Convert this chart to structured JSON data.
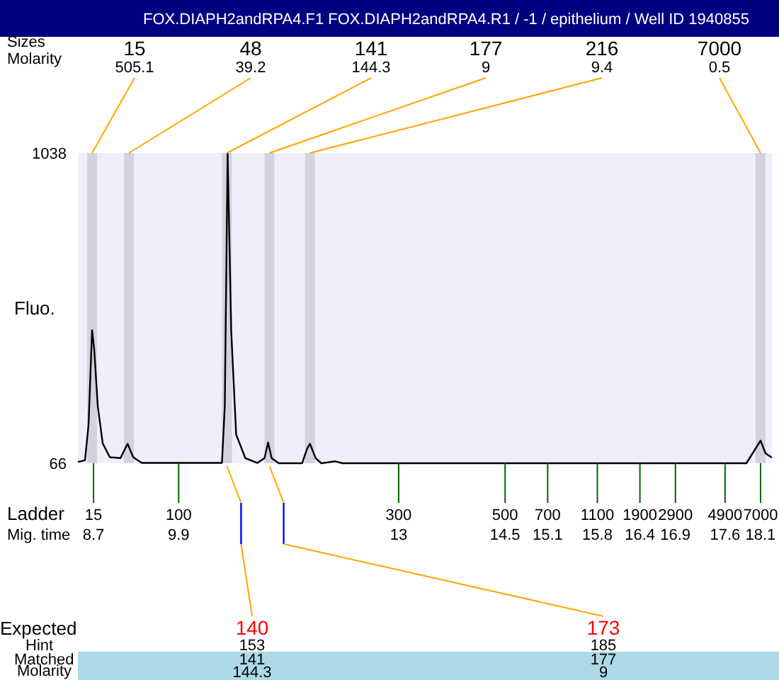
{
  "chart_data": {
    "type": "line",
    "title": "FOX.DIAPH2andRPA4.F1  FOX.DIAPH2andRPA4.R1  / -1  / epithelium  / Well ID 1940855",
    "ylabel": "Fluo.",
    "x": [
      8.48,
      8.58,
      8.63,
      8.68,
      8.71,
      8.76,
      8.83,
      8.93,
      9.08,
      9.18,
      9.26,
      9.38,
      10.51,
      10.55,
      10.59,
      10.64,
      10.71,
      10.84,
      11.01,
      11.11,
      11.16,
      11.21,
      11.31,
      11.64,
      11.71,
      11.75,
      11.83,
      11.91,
      12.11,
      12.21,
      17.9,
      18.1,
      18.17,
      18.26
    ],
    "series": [
      {
        "color": "#000000",
        "values": [
          70,
          75,
          186,
          483,
          422,
          245,
          128,
          85,
          82,
          127,
          85,
          67,
          67,
          245,
          1038,
          483,
          156,
          82,
          67,
          82,
          131,
          82,
          66,
          66,
          112,
          127,
          82,
          66,
          72,
          66,
          66,
          137,
          97,
          84
        ]
      }
    ],
    "xlim": [
      8.48,
      18.26
    ],
    "ylim": [
      66,
      1038
    ],
    "yticks": [
      66,
      1038
    ],
    "xticks": [
      8.7,
      9.9,
      13,
      14.5,
      15.1,
      15.8,
      16.4,
      16.9,
      17.6,
      18.1
    ],
    "bands": [
      {
        "axis": "x",
        "from": 8.61,
        "to": 8.75,
        "color": "#d3d3e0"
      },
      {
        "axis": "x",
        "from": 9.13,
        "to": 9.27,
        "color": "#d3d3e0"
      },
      {
        "axis": "x",
        "from": 10.51,
        "to": 10.65,
        "color": "#d3d3e0"
      },
      {
        "axis": "x",
        "from": 11.11,
        "to": 11.25,
        "color": "#d3d3e0"
      },
      {
        "axis": "x",
        "from": 11.68,
        "to": 11.82,
        "color": "#d3d3e0"
      },
      {
        "axis": "x",
        "from": 18.03,
        "to": 18.17,
        "color": "#d3d3e0"
      }
    ],
    "annotations": [
      "Sizes",
      "Molarity",
      "Ladder",
      "Mig. time",
      "Expected",
      "Hint",
      "Matched",
      "Molarity",
      "15",
      "505.1",
      "48",
      "39.2",
      "141",
      "144.3",
      "177",
      "9",
      "216",
      "9.4",
      "7000",
      "0.5",
      "15",
      "100",
      "300",
      "500",
      "700",
      "1100",
      "1900",
      "2900",
      "4900",
      "7000",
      "140",
      "153",
      "141",
      "144.3",
      "173",
      "185",
      "177",
      "9"
    ]
  }
}
